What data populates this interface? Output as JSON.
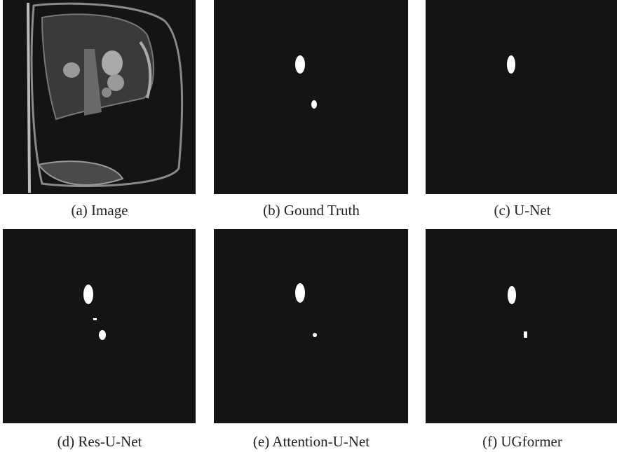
{
  "figure": {
    "panels": [
      {
        "caption": "(a) Image"
      },
      {
        "caption": "(b) Gound Truth"
      },
      {
        "caption": "(c) U-Net"
      },
      {
        "caption": "(d) Res-U-Net"
      },
      {
        "caption": "(e) Attention-U-Net"
      },
      {
        "caption": "(f) UGformer"
      }
    ]
  }
}
